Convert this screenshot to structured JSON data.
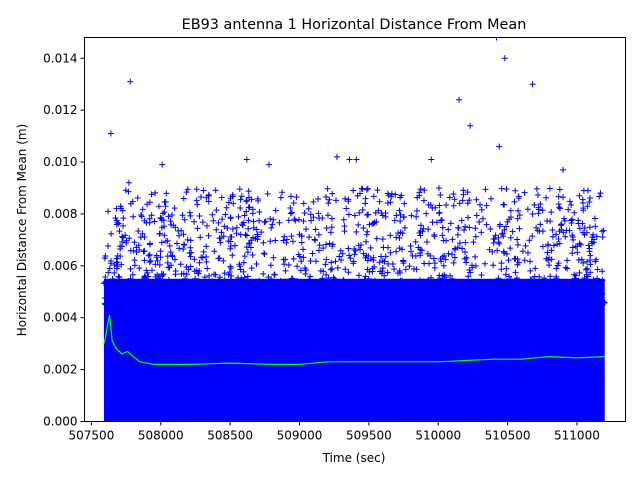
{
  "chart_data": {
    "type": "scatter",
    "title": "EB93 antenna 1 Horizontal Distance From Mean",
    "xlabel": "Time (sec)",
    "ylabel": "Horizontal Distance From Mean (m)",
    "xlim": [
      507450,
      511350
    ],
    "ylim": [
      0,
      0.0148
    ],
    "x_ticks": [
      507500,
      508000,
      508500,
      509000,
      509500,
      510000,
      510500,
      511000
    ],
    "x_tick_labels": [
      "507500",
      "508000",
      "508500",
      "509000",
      "509500",
      "510000",
      "510500",
      "511000"
    ],
    "y_ticks": [
      0,
      0.002,
      0.004,
      0.006,
      0.008,
      0.01,
      0.012,
      0.014
    ],
    "y_tick_labels": [
      "0.000",
      "0.002",
      "0.004",
      "0.006",
      "0.008",
      "0.010",
      "0.012",
      "0.014"
    ],
    "grid": false,
    "legend": "none",
    "series": [
      {
        "style": "plus-marker",
        "color": "#0000ff",
        "x_range": [
          507590,
          511200
        ],
        "dense_fill_to": 0.0055,
        "notable_points": [
          {
            "x": 507620,
            "y": 0.0081
          },
          {
            "x": 507640,
            "y": 0.0111
          },
          {
            "x": 507780,
            "y": 0.0131
          },
          {
            "x": 507770,
            "y": 0.0092
          },
          {
            "x": 508010,
            "y": 0.0099
          },
          {
            "x": 508620,
            "y": 0.0101
          },
          {
            "x": 508780,
            "y": 0.0099
          },
          {
            "x": 509270,
            "y": 0.0102
          },
          {
            "x": 509360,
            "y": 0.0101
          },
          {
            "x": 509410,
            "y": 0.0101
          },
          {
            "x": 509950,
            "y": 0.0101
          },
          {
            "x": 510150,
            "y": 0.0124
          },
          {
            "x": 510230,
            "y": 0.0114
          },
          {
            "x": 510420,
            "y": 0.0148
          },
          {
            "x": 510480,
            "y": 0.014
          },
          {
            "x": 510680,
            "y": 0.013
          },
          {
            "x": 510900,
            "y": 0.0097
          },
          {
            "x": 510440,
            "y": 0.0106
          },
          {
            "x": 511050,
            "y": 0.0089
          },
          {
            "x": 511170,
            "y": 0.0088
          }
        ]
      },
      {
        "style": "line",
        "color": "#00ff00",
        "x": [
          507590,
          507600,
          507615,
          507630,
          507650,
          507680,
          507720,
          507760,
          507800,
          507850,
          507950,
          508200,
          508500,
          508800,
          509000,
          509200,
          509400,
          509600,
          509800,
          510000,
          510200,
          510400,
          510600,
          510800,
          511000,
          511200
        ],
        "y": [
          0.003,
          0.0032,
          0.0037,
          0.0041,
          0.0031,
          0.0028,
          0.0026,
          0.0027,
          0.0025,
          0.0023,
          0.0022,
          0.0022,
          0.00225,
          0.0022,
          0.0022,
          0.0023,
          0.0023,
          0.0023,
          0.0023,
          0.0023,
          0.00235,
          0.0024,
          0.0024,
          0.0025,
          0.00245,
          0.0025
        ]
      }
    ]
  }
}
